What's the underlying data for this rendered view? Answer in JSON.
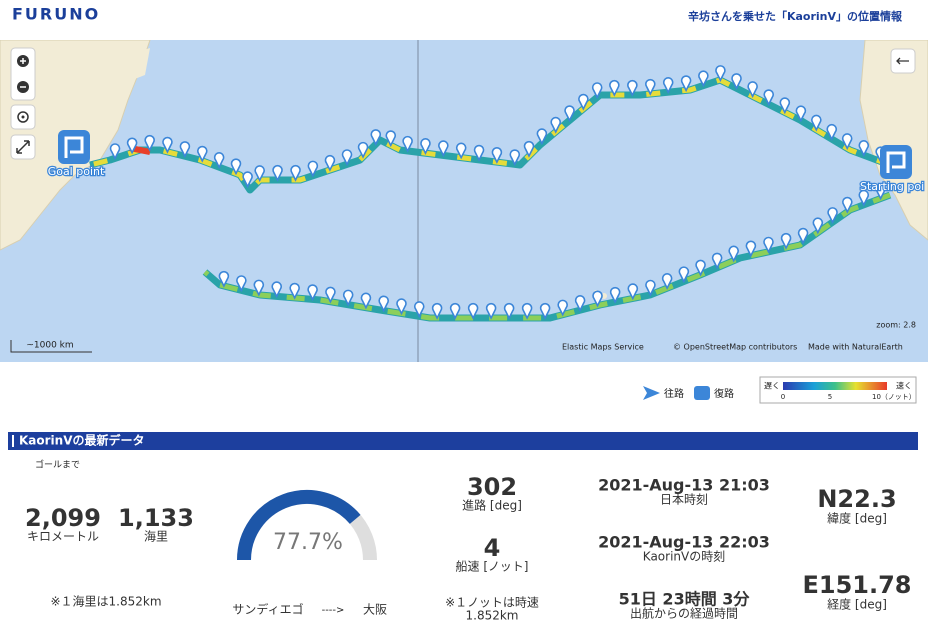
{
  "header": {
    "logo": "FURUNO",
    "title": "辛坊さんを乗せた「KaorinⅤ」の位置情報"
  },
  "map": {
    "goal_label": "Goal point",
    "start_label": "Starting poi",
    "zoom": "zoom: 2.8",
    "scale": "~1000 km",
    "attribution": [
      "Elastic Maps Service",
      "© OpenStreetMap contributors",
      "Made with NaturalEarth"
    ]
  },
  "legend": {
    "outbound": "往路",
    "return": "復路",
    "slow": "遅く",
    "fast": "速く",
    "ticks": [
      "0",
      "5",
      "10（ノット）"
    ]
  },
  "latest": {
    "title": "KaorinⅤの最新データ",
    "to_goal": "ゴールまで",
    "km": {
      "value": "2,099",
      "unit": "キロメートル"
    },
    "nm": {
      "value": "1,133",
      "unit": "海里"
    },
    "nm_note": "※１海里は1.852km",
    "progress": {
      "value": 77.7,
      "label": "77.7%"
    },
    "route": {
      "from": "サンディエゴ",
      "arrow": "---->",
      "to": "大阪"
    },
    "heading": {
      "value": "302",
      "unit": "進路 [deg]"
    },
    "speed": {
      "value": "4",
      "unit": "船速 [ノット]"
    },
    "speed_note": [
      "※１ノットは時速",
      "1.852km"
    ],
    "jst": {
      "value": "2021-Aug-13 21:03",
      "unit": "日本時刻"
    },
    "boat_time": {
      "value": "2021-Aug-13 22:03",
      "unit": "KaorinVの時刻"
    },
    "elapsed": {
      "value": "51日 23時間 3分",
      "unit": "出航からの経過時間"
    },
    "lat": {
      "value": "N22.3",
      "unit": "緯度 [deg]"
    },
    "lon": {
      "value": "E151.78",
      "unit": "経度 [deg]"
    }
  }
}
